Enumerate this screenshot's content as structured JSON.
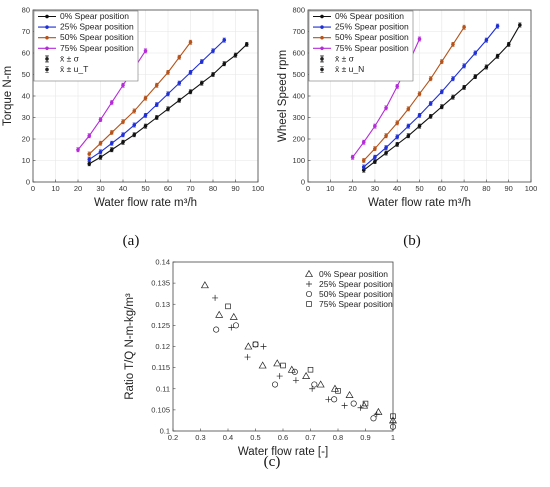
{
  "panel_labels": [
    "(a)",
    "(b)",
    "(c)"
  ],
  "chart_data": [
    {
      "id": "a",
      "type": "line",
      "xlabel": "Water flow rate m³/h",
      "ylabel": "Torque N-m",
      "xlim": [
        0,
        100
      ],
      "ylim": [
        0,
        80
      ],
      "xticks": [
        0,
        10,
        20,
        30,
        40,
        50,
        60,
        70,
        80,
        90,
        100
      ],
      "yticks": [
        0,
        10,
        20,
        30,
        40,
        50,
        60,
        70,
        80
      ],
      "grid": true,
      "legend_position": "top-left",
      "legend": [
        "0% Spear position",
        "25% Spear position",
        "50% Spear position",
        "75% Spear position",
        "x̄ ± σ",
        "x̄ ± u_T"
      ],
      "series": [
        {
          "name": "0% Spear position",
          "color": "#111111",
          "x": [
            25,
            30,
            35,
            40,
            45,
            50,
            55,
            60,
            65,
            70,
            75,
            80,
            85,
            90,
            95
          ],
          "y": [
            8.5,
            11.5,
            15,
            18.5,
            22,
            26,
            30,
            34,
            38,
            42,
            46,
            50,
            55,
            59,
            64
          ]
        },
        {
          "name": "25% Spear position",
          "color": "#1f2fd6",
          "x": [
            25,
            30,
            35,
            40,
            45,
            50,
            55,
            60,
            65,
            70,
            75,
            80,
            85
          ],
          "y": [
            10.5,
            14,
            18,
            22,
            26.5,
            31,
            36,
            41,
            46,
            51,
            56,
            61,
            66
          ]
        },
        {
          "name": "50% Spear position",
          "color": "#b5531a",
          "x": [
            25,
            30,
            35,
            40,
            45,
            50,
            55,
            60,
            65,
            70
          ],
          "y": [
            13,
            18,
            23,
            28,
            33,
            39,
            45,
            51,
            58,
            65
          ]
        },
        {
          "name": "75% Spear position",
          "color": "#b52bd9",
          "x": [
            20,
            25,
            30,
            35,
            40,
            45,
            50
          ],
          "y": [
            15,
            21.5,
            29,
            37,
            45,
            53,
            61
          ]
        }
      ]
    },
    {
      "id": "b",
      "type": "line",
      "xlabel": "Water flow rate m³/h",
      "ylabel": "Wheel Speed rpm",
      "xlim": [
        0,
        100
      ],
      "ylim": [
        0,
        800
      ],
      "xticks": [
        0,
        10,
        20,
        30,
        40,
        50,
        60,
        70,
        80,
        90,
        100
      ],
      "yticks": [
        0,
        100,
        200,
        300,
        400,
        500,
        600,
        700,
        800
      ],
      "grid": true,
      "legend_position": "top-left",
      "legend": [
        "0% Spear position",
        "25% Spear position",
        "50% Spear position",
        "75% Spear position",
        "x̄ ± σ",
        "x̄ ± u_N"
      ],
      "series": [
        {
          "name": "0% Spear position",
          "color": "#111111",
          "x": [
            25,
            30,
            35,
            40,
            45,
            50,
            55,
            60,
            65,
            70,
            75,
            80,
            85,
            90,
            95
          ],
          "y": [
            55,
            95,
            135,
            175,
            215,
            260,
            305,
            350,
            395,
            440,
            490,
            535,
            585,
            640,
            730
          ]
        },
        {
          "name": "25% Spear position",
          "color": "#1f2fd6",
          "x": [
            25,
            30,
            35,
            40,
            45,
            50,
            55,
            60,
            65,
            70,
            75,
            80,
            85
          ],
          "y": [
            70,
            115,
            160,
            210,
            260,
            310,
            365,
            420,
            480,
            540,
            600,
            660,
            725
          ]
        },
        {
          "name": "50% Spear position",
          "color": "#b5531a",
          "x": [
            25,
            30,
            35,
            40,
            45,
            50,
            55,
            60,
            65,
            70
          ],
          "y": [
            100,
            155,
            215,
            275,
            340,
            410,
            480,
            560,
            640,
            720
          ]
        },
        {
          "name": "75% Spear position",
          "color": "#b52bd9",
          "x": [
            20,
            25,
            30,
            35,
            40,
            45,
            50
          ],
          "y": [
            115,
            185,
            260,
            345,
            445,
            550,
            665
          ]
        }
      ]
    },
    {
      "id": "c",
      "type": "scatter",
      "xlabel": "Water flow rate [-]",
      "ylabel": "Ratio T/Q N-m-kg/m³",
      "xlim": [
        0.2,
        1.0
      ],
      "ylim": [
        0.1,
        0.14
      ],
      "xticks": [
        0.2,
        0.3,
        0.4,
        0.5,
        0.6,
        0.7,
        0.8,
        0.9,
        1
      ],
      "yticks": [
        0.1,
        0.105,
        0.11,
        0.115,
        0.12,
        0.125,
        0.13,
        0.135,
        0.14
      ],
      "grid": false,
      "legend_position": "top-right",
      "legend": [
        "0% Spear position",
        "25% Spear position",
        "50% Spear position",
        "75% Spear position"
      ],
      "series": [
        {
          "name": "0% Spear position",
          "marker": "triangle",
          "x": [
            0.316,
            0.368,
            0.421,
            0.474,
            0.526,
            0.579,
            0.632,
            0.684,
            0.737,
            0.789,
            0.842,
            0.895,
            0.947,
            1.0
          ],
          "y": [
            0.1345,
            0.1275,
            0.127,
            0.12,
            0.1155,
            0.116,
            0.1145,
            0.113,
            0.111,
            0.11,
            0.1085,
            0.106,
            0.1045,
            0.1025
          ]
        },
        {
          "name": "25% Spear position",
          "marker": "plus",
          "x": [
            0.353,
            0.412,
            0.471,
            0.529,
            0.588,
            0.647,
            0.706,
            0.765,
            0.824,
            0.882,
            0.941,
            1.0
          ],
          "y": [
            0.1315,
            0.1245,
            0.1175,
            0.12,
            0.113,
            0.112,
            0.11,
            0.1075,
            0.106,
            0.1055,
            0.104,
            0.102
          ]
        },
        {
          "name": "50% Spear position",
          "marker": "circle",
          "x": [
            0.357,
            0.429,
            0.5,
            0.571,
            0.643,
            0.714,
            0.786,
            0.857,
            0.929,
            1.0
          ],
          "y": [
            0.124,
            0.125,
            0.1205,
            0.111,
            0.114,
            0.111,
            0.1075,
            0.1065,
            0.103,
            0.101
          ]
        },
        {
          "name": "75% Spear position",
          "marker": "square",
          "x": [
            0.4,
            0.5,
            0.6,
            0.7,
            0.8,
            0.9,
            1.0
          ],
          "y": [
            0.1295,
            0.1205,
            0.1155,
            0.1145,
            0.1095,
            0.1065,
            0.1035
          ]
        }
      ]
    }
  ]
}
